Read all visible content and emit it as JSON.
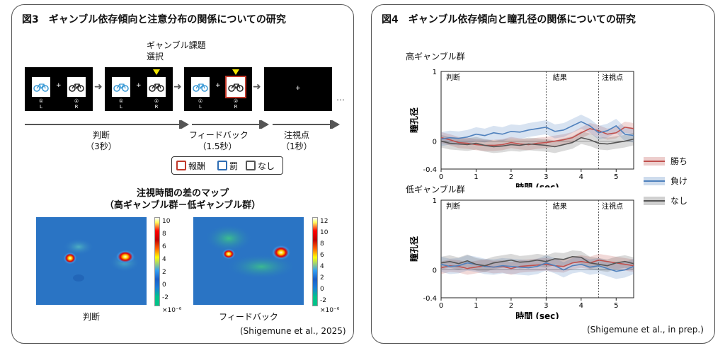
{
  "fig3": {
    "title": "図3　ギャンブル依存傾向と注意分布の関係についての研究",
    "choice_label_1": "ギャンブル課題",
    "choice_label_2": "選択",
    "key_left_1": "①",
    "key_left_2": "L",
    "key_right_1": "②",
    "key_right_2": "R",
    "fixation_plus": "+",
    "ellipsis": "…",
    "phases": [
      {
        "name": "判断",
        "duration": "（3秒）"
      },
      {
        "name": "フィードバック",
        "duration": "（1.5秒）"
      },
      {
        "name": "注視点",
        "duration": "（1秒）"
      }
    ],
    "legend": [
      {
        "label": "報酬",
        "color": "#c0392b"
      },
      {
        "label": "罰",
        "color": "#2e6db4"
      },
      {
        "label": "なし",
        "color": "#555555"
      }
    ],
    "map_title_1": "注視時間の差のマップ",
    "map_title_2": "（高ギャンブル群－低ギャンブル群）",
    "maps": [
      {
        "label": "判断",
        "ticks": [
          "10",
          "8",
          "6",
          "4",
          "2",
          "0",
          "-2"
        ],
        "scale": "×10⁻⁶"
      },
      {
        "label": "フィードバック",
        "ticks": [
          "12",
          "10",
          "8",
          "6",
          "4",
          "2",
          "0",
          "-2"
        ],
        "scale": "×10⁻⁶"
      }
    ],
    "citation": "(Shigemune et al., 2025)"
  },
  "fig4": {
    "title": "図4　ギャンブル依存傾向と瞳孔径の関係についての研究",
    "citation": "(Shigemune et al., in prep.)",
    "legend": [
      {
        "label": "勝ち",
        "color": "#c0504d"
      },
      {
        "label": "負け",
        "color": "#4f81bd"
      },
      {
        "label": "なし",
        "color": "#555555"
      }
    ],
    "colors": {
      "win": "#c0504d",
      "loss": "#4f81bd",
      "none": "#555555"
    },
    "chart_data": [
      {
        "type": "line",
        "title": "高ギャンブル群",
        "xlabel": "時間 (sec)",
        "ylabel": "瞳孔径",
        "xlim": [
          0,
          5.5
        ],
        "ylim": [
          -0.4,
          1
        ],
        "x_ticks": [
          "0",
          "1",
          "2",
          "3",
          "4",
          "5"
        ],
        "y_ticks": [
          "1",
          "0",
          "-0.4"
        ],
        "phase_labels": [
          {
            "text": "判断",
            "x": 0.1
          },
          {
            "text": "結果",
            "x": 3.15
          },
          {
            "text": "注視点",
            "x": 4.55
          }
        ],
        "vlines": [
          3.0,
          4.5
        ],
        "x": [
          0,
          0.25,
          0.5,
          0.75,
          1,
          1.25,
          1.5,
          1.75,
          2,
          2.25,
          2.5,
          2.75,
          3,
          3.25,
          3.5,
          3.75,
          4,
          4.25,
          4.5,
          4.75,
          5,
          5.25,
          5.5
        ],
        "series": [
          {
            "name": "勝ち",
            "values": [
              0.05,
              0.02,
              -0.02,
              -0.03,
              -0.05,
              -0.06,
              -0.06,
              -0.05,
              -0.02,
              -0.04,
              -0.05,
              -0.03,
              -0.02,
              0.0,
              0.02,
              0.05,
              0.12,
              0.18,
              0.15,
              0.1,
              0.12,
              0.2,
              0.18
            ],
            "band": 0.08
          },
          {
            "name": "負け",
            "values": [
              0.03,
              0.05,
              0.04,
              0.06,
              0.1,
              0.08,
              0.12,
              0.1,
              0.14,
              0.13,
              0.16,
              0.18,
              0.2,
              0.14,
              0.16,
              0.22,
              0.28,
              0.22,
              0.12,
              0.15,
              0.22,
              0.1,
              0.08
            ],
            "band": 0.1
          },
          {
            "name": "なし",
            "values": [
              0.0,
              -0.03,
              -0.04,
              -0.05,
              -0.03,
              -0.06,
              -0.08,
              -0.07,
              -0.05,
              -0.06,
              -0.04,
              -0.05,
              -0.06,
              -0.08,
              -0.05,
              -0.02,
              0.05,
              0.02,
              -0.03,
              -0.04,
              -0.02,
              0.0,
              0.03
            ],
            "band": 0.09
          }
        ]
      },
      {
        "type": "line",
        "title": "低ギャンブル群",
        "xlabel": "時間 (sec)",
        "ylabel": "瞳孔径",
        "xlim": [
          0,
          5.5
        ],
        "ylim": [
          -0.4,
          1
        ],
        "x_ticks": [
          "0",
          "1",
          "2",
          "3",
          "4",
          "5"
        ],
        "y_ticks": [
          "1",
          "0",
          "-0.4"
        ],
        "phase_labels": [
          {
            "text": "判断",
            "x": 0.1
          },
          {
            "text": "結果",
            "x": 3.15
          },
          {
            "text": "注視点",
            "x": 4.55
          }
        ],
        "vlines": [
          3.0,
          4.5
        ],
        "x": [
          0,
          0.25,
          0.5,
          0.75,
          1,
          1.25,
          1.5,
          1.75,
          2,
          2.25,
          2.5,
          2.75,
          3,
          3.25,
          3.5,
          3.75,
          4,
          4.25,
          4.5,
          4.75,
          5,
          5.25,
          5.5
        ],
        "series": [
          {
            "name": "勝ち",
            "values": [
              0.03,
              0.06,
              0.05,
              0.02,
              0.04,
              0.06,
              0.04,
              0.05,
              0.02,
              0.05,
              0.06,
              0.07,
              0.08,
              0.06,
              0.05,
              0.1,
              0.12,
              0.1,
              0.14,
              0.12,
              0.1,
              0.08,
              0.06
            ],
            "band": 0.09
          },
          {
            "name": "負け",
            "values": [
              0.08,
              0.05,
              0.06,
              0.1,
              0.08,
              0.05,
              0.04,
              0.06,
              0.05,
              0.04,
              0.03,
              0.05,
              0.1,
              0.06,
              0.0,
              0.06,
              0.08,
              0.04,
              0.06,
              0.02,
              -0.02,
              0.0,
              0.05
            ],
            "band": 0.11
          },
          {
            "name": "なし",
            "values": [
              0.1,
              0.12,
              0.09,
              0.13,
              0.08,
              0.06,
              0.1,
              0.12,
              0.14,
              0.11,
              0.12,
              0.14,
              0.12,
              0.16,
              0.15,
              0.19,
              0.18,
              0.1,
              0.08,
              0.06,
              0.1,
              0.12,
              0.09
            ],
            "band": 0.09
          }
        ]
      }
    ]
  }
}
